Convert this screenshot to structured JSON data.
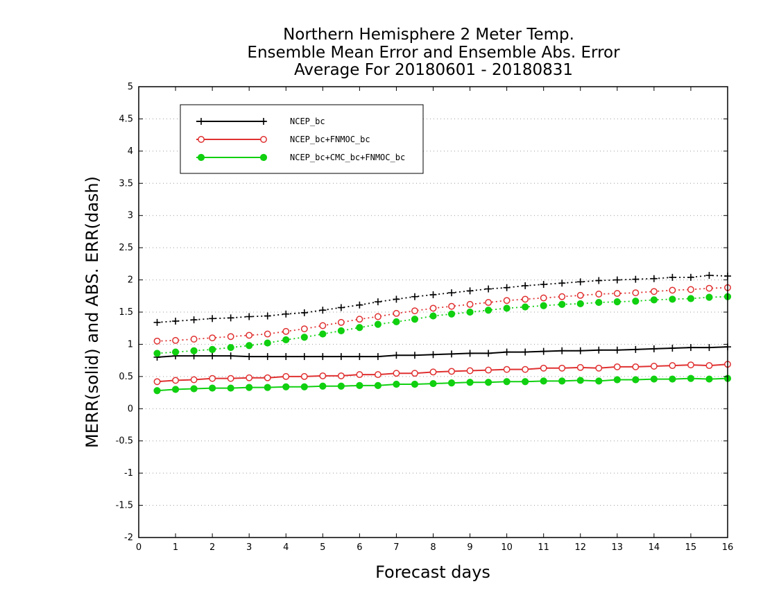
{
  "chart_data": {
    "type": "line",
    "title": [
      "Northern Hemisphere 2 Meter Temp.",
      "Ensemble Mean Error and Ensemble Abs. Error",
      "Average For 20180601 - 20180831"
    ],
    "xlabel": "Forecast days",
    "ylabel": "MERR(solid) and ABS. ERR(dash)",
    "xlim": [
      0,
      16
    ],
    "ylim": [
      -2,
      5
    ],
    "xticks": [
      "0",
      "1",
      "2",
      "3",
      "4",
      "5",
      "6",
      "7",
      "8",
      "9",
      "10",
      "11",
      "12",
      "13",
      "14",
      "15",
      "16"
    ],
    "yticks": [
      "-2",
      "-1.5",
      "-1",
      "-0.5",
      "0",
      "0.5",
      "1",
      "1.5",
      "2",
      "2.5",
      "3",
      "3.5",
      "4",
      "4.5",
      "5"
    ],
    "grid": "horizontal-dotted",
    "legend_position": "top-left",
    "x": [
      0.5,
      1,
      1.5,
      2,
      2.5,
      3,
      3.5,
      4,
      4.5,
      5,
      5.5,
      6,
      6.5,
      7,
      7.5,
      8,
      8.5,
      9,
      9.5,
      10,
      10.5,
      11,
      11.5,
      12,
      12.5,
      13,
      13.5,
      14,
      14.5,
      15,
      15.5,
      16
    ],
    "series": [
      {
        "name": "NCEP_bc",
        "color": "#000000",
        "marker": "plus",
        "merr": [
          0.8,
          0.82,
          0.82,
          0.82,
          0.82,
          0.81,
          0.81,
          0.81,
          0.81,
          0.81,
          0.81,
          0.81,
          0.81,
          0.83,
          0.83,
          0.84,
          0.85,
          0.86,
          0.86,
          0.88,
          0.88,
          0.89,
          0.9,
          0.9,
          0.91,
          0.91,
          0.92,
          0.93,
          0.94,
          0.95,
          0.95,
          0.96
        ],
        "abs_err": [
          1.34,
          1.36,
          1.38,
          1.4,
          1.41,
          1.43,
          1.44,
          1.47,
          1.49,
          1.53,
          1.57,
          1.61,
          1.66,
          1.7,
          1.74,
          1.77,
          1.8,
          1.83,
          1.86,
          1.88,
          1.91,
          1.93,
          1.95,
          1.97,
          1.99,
          2.0,
          2.01,
          2.02,
          2.04,
          2.04,
          2.07,
          2.06
        ]
      },
      {
        "name": "NCEP_bc+FNMOC_bc",
        "color": "#e03030",
        "marker": "open-circle",
        "merr": [
          0.42,
          0.44,
          0.45,
          0.47,
          0.47,
          0.48,
          0.48,
          0.5,
          0.5,
          0.51,
          0.51,
          0.53,
          0.53,
          0.55,
          0.55,
          0.57,
          0.58,
          0.59,
          0.6,
          0.61,
          0.61,
          0.63,
          0.63,
          0.64,
          0.63,
          0.65,
          0.65,
          0.66,
          0.67,
          0.68,
          0.67,
          0.69
        ],
        "abs_err": [
          1.05,
          1.06,
          1.08,
          1.1,
          1.12,
          1.14,
          1.16,
          1.2,
          1.24,
          1.29,
          1.34,
          1.39,
          1.43,
          1.48,
          1.52,
          1.56,
          1.59,
          1.62,
          1.65,
          1.68,
          1.7,
          1.72,
          1.74,
          1.76,
          1.78,
          1.79,
          1.8,
          1.82,
          1.84,
          1.85,
          1.87,
          1.88
        ]
      },
      {
        "name": "NCEP_bc+CMC_bc+FNMOC_bc",
        "color": "#10d010",
        "marker": "filled-circle",
        "merr": [
          0.28,
          0.3,
          0.31,
          0.32,
          0.32,
          0.33,
          0.33,
          0.34,
          0.34,
          0.35,
          0.35,
          0.36,
          0.36,
          0.38,
          0.38,
          0.39,
          0.4,
          0.41,
          0.41,
          0.42,
          0.42,
          0.43,
          0.43,
          0.44,
          0.43,
          0.45,
          0.45,
          0.46,
          0.46,
          0.47,
          0.46,
          0.47
        ],
        "abs_err": [
          0.86,
          0.88,
          0.9,
          0.92,
          0.95,
          0.98,
          1.02,
          1.07,
          1.11,
          1.16,
          1.21,
          1.26,
          1.31,
          1.35,
          1.39,
          1.44,
          1.47,
          1.5,
          1.53,
          1.56,
          1.58,
          1.6,
          1.62,
          1.63,
          1.65,
          1.66,
          1.67,
          1.69,
          1.7,
          1.71,
          1.73,
          1.74
        ]
      }
    ]
  }
}
